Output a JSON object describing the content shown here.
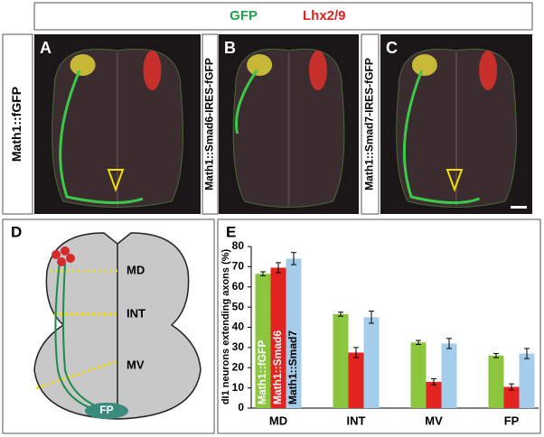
{
  "header": {
    "labels": [
      "GFP",
      "Lhx2/9"
    ]
  },
  "panels": [
    {
      "letter": "A",
      "side_label": "Math1::fGFP"
    },
    {
      "letter": "B",
      "side_label": "Math1::Smad6-IRES-fGFP"
    },
    {
      "letter": "C",
      "side_label": "Math1::Smad7-IRES-fGFP"
    }
  ],
  "diagram": {
    "letter": "D",
    "labels": [
      "MD",
      "INT",
      "MV",
      "FP"
    ]
  },
  "chart_panel": {
    "letter": "E"
  },
  "chart_data": {
    "type": "bar",
    "y_label": "dI1 neurons extending axons (%)",
    "categories": [
      "MD",
      "INT",
      "MV",
      "FP"
    ],
    "series": [
      {
        "name": "Math1::fGFP",
        "color": "#8cc63f",
        "values": [
          66.5,
          46.5,
          32.5,
          26
        ],
        "errors": [
          1,
          1,
          1,
          1
        ]
      },
      {
        "name": "Math1::Smad6",
        "color": "#e2231f",
        "values": [
          69.5,
          27.5,
          13,
          10.5
        ],
        "errors": [
          2.5,
          2.5,
          1.5,
          1.5
        ]
      },
      {
        "name": "Math1::Smad7",
        "color": "#a3cdea",
        "values": [
          74,
          45,
          32,
          27
        ],
        "errors": [
          3,
          3,
          2.5,
          2.5
        ]
      }
    ],
    "ylim": [
      0,
      80
    ],
    "yticks": [
      0,
      10,
      20,
      30,
      40,
      50,
      60,
      70,
      80
    ]
  }
}
